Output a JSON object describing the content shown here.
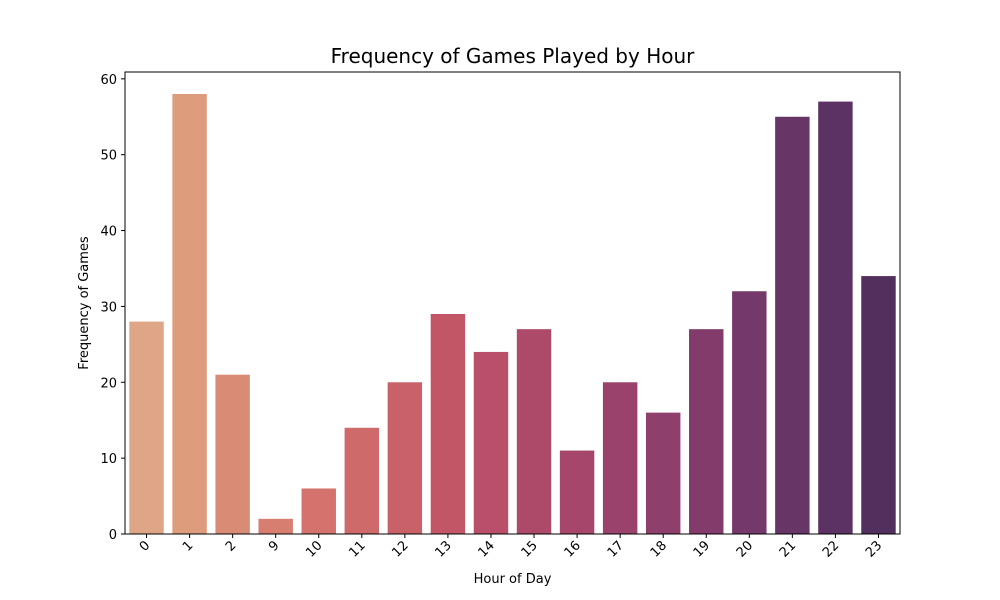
{
  "chart_data": {
    "type": "bar",
    "title": "Frequency of Games Played by Hour",
    "xlabel": "Hour of Day",
    "ylabel": "Frequency of Games",
    "categories": [
      "0",
      "1",
      "2",
      "9",
      "10",
      "11",
      "12",
      "13",
      "14",
      "15",
      "16",
      "17",
      "18",
      "19",
      "20",
      "21",
      "22",
      "23"
    ],
    "values": [
      28,
      58,
      21,
      2,
      6,
      14,
      20,
      29,
      24,
      27,
      11,
      20,
      16,
      27,
      32,
      55,
      57,
      34
    ],
    "colors": [
      "#dea686",
      "#dd9c7b",
      "#d98c75",
      "#d77e70",
      "#d4736d",
      "#cf6a6b",
      "#c96169",
      "#c25667",
      "#b94f68",
      "#ae4a69",
      "#a5466a",
      "#9a426b",
      "#8e3f6b",
      "#823b6b",
      "#74386a",
      "#683567",
      "#5c3264",
      "#52305e"
    ],
    "yticks": [
      0,
      10,
      20,
      30,
      40,
      50,
      60
    ],
    "ylim": [
      0,
      60.9
    ],
    "grid": false,
    "legend": "none"
  }
}
